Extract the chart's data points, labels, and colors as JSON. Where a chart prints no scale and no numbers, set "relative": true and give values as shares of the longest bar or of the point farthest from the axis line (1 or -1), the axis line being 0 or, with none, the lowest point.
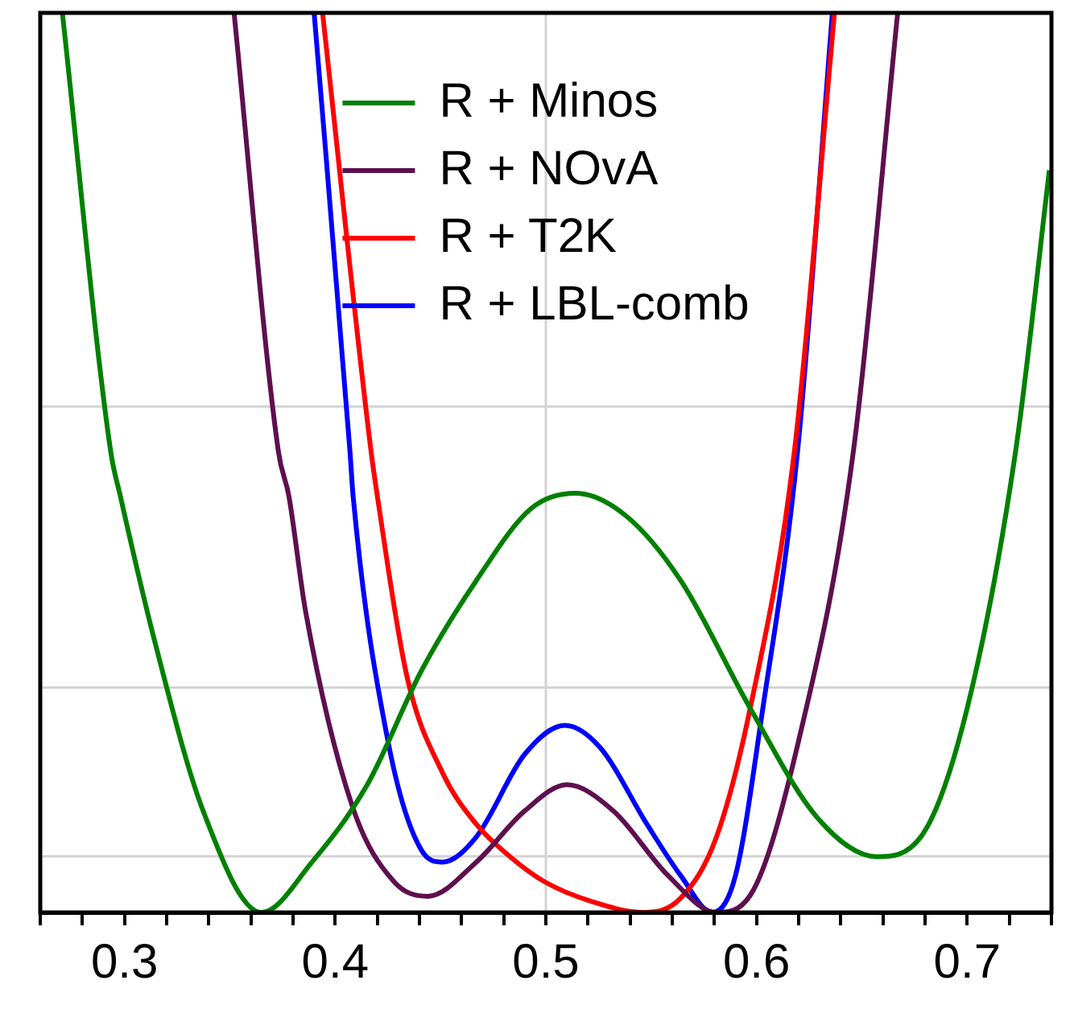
{
  "chart_data": {
    "type": "line",
    "relative": true,
    "xlim": [
      0.26,
      0.74
    ],
    "xticks": [
      {
        "value": 0.26,
        "label": null
      },
      {
        "value": 0.28,
        "label": null
      },
      0.3,
      {
        "value": 0.32,
        "label": null
      },
      {
        "value": 0.34,
        "label": null
      },
      {
        "value": 0.36,
        "label": null
      },
      {
        "value": 0.38,
        "label": null
      },
      0.4,
      {
        "value": 0.42,
        "label": null
      },
      {
        "value": 0.44,
        "label": null
      },
      {
        "value": 0.46,
        "label": null
      },
      {
        "value": 0.48,
        "label": null
      },
      0.5,
      {
        "value": 0.52,
        "label": null
      },
      {
        "value": 0.54,
        "label": null
      },
      {
        "value": 0.56,
        "label": null
      },
      {
        "value": 0.58,
        "label": null
      },
      0.6,
      {
        "value": 0.62,
        "label": null
      },
      {
        "value": 0.64,
        "label": null
      },
      {
        "value": 0.66,
        "label": null
      },
      {
        "value": 0.68,
        "label": null
      },
      0.7,
      {
        "value": 0.72,
        "label": null
      },
      {
        "value": 0.74,
        "label": null
      }
    ],
    "legend": "top",
    "ref_lines": [
      {
        "axis": "x",
        "value": 0.5,
        "color": "#d3d3d3"
      },
      {
        "axis": "y",
        "value": 0.0625,
        "color": "#d3d3d3"
      },
      {
        "axis": "y",
        "value": 0.25,
        "color": "#d3d3d3"
      },
      {
        "axis": "y",
        "value": 0.5625,
        "color": "#d3d3d3"
      }
    ],
    "series": [
      {
        "name": "R + Minos",
        "color": "#008000",
        "x": [
          0.2705,
          0.2934,
          0.298,
          0.3147,
          0.3373,
          0.365,
          0.389,
          0.415,
          0.441,
          0.467,
          0.493,
          0.514,
          0.538,
          0.564,
          0.597,
          0.629,
          0.657,
          0.678,
          0.7,
          0.723,
          0.739
        ],
        "values": [
          1,
          0.513,
          0.463,
          0.298,
          0.113,
          0,
          0.056,
          0.141,
          0.269,
          0.369,
          0.449,
          0.466,
          0.441,
          0.369,
          0.227,
          0.105,
          0.062,
          0.084,
          0.227,
          0.513,
          0.825
        ]
      },
      {
        "name": "R + NOvA",
        "color": "#5e0f4f",
        "x": [
          0.352,
          0.373,
          0.378,
          0.386,
          0.408,
          0.428,
          0.444,
          0.467,
          0.49,
          0.51,
          0.532,
          0.558,
          0.581,
          0.597,
          0.62,
          0.646,
          0.667
        ],
        "values": [
          1,
          0.513,
          0.463,
          0.334,
          0.119,
          0.034,
          0.018,
          0.056,
          0.113,
          0.142,
          0.113,
          0.041,
          0,
          0.019,
          0.191,
          0.513,
          1
        ]
      },
      {
        "name": "R + T2K",
        "color": "#ff0000",
        "x": [
          0.394,
          0.417,
          0.42,
          0.434,
          0.451,
          0.467,
          0.483,
          0.4995,
          0.522,
          0.5465,
          0.564,
          0.581,
          0.597,
          0.618,
          0.637
        ],
        "values": [
          1,
          0.513,
          0.463,
          0.263,
          0.155,
          0.098,
          0.062,
          0.034,
          0.012,
          0,
          0.016,
          0.084,
          0.227,
          0.513,
          1
        ]
      },
      {
        "name": "R + LBL-comb",
        "color": "#0000ff",
        "x": [
          0.39,
          0.407,
          0.4085,
          0.425,
          0.441,
          0.451,
          0.467,
          0.49,
          0.509,
          0.5255,
          0.548,
          0.564,
          0.579,
          0.59,
          0.603,
          0.6195,
          0.636
        ],
        "values": [
          1,
          0.513,
          0.463,
          0.191,
          0.069,
          0.056,
          0.084,
          0.176,
          0.208,
          0.184,
          0.098,
          0.041,
          0,
          0.041,
          0.227,
          0.513,
          1
        ]
      }
    ]
  }
}
